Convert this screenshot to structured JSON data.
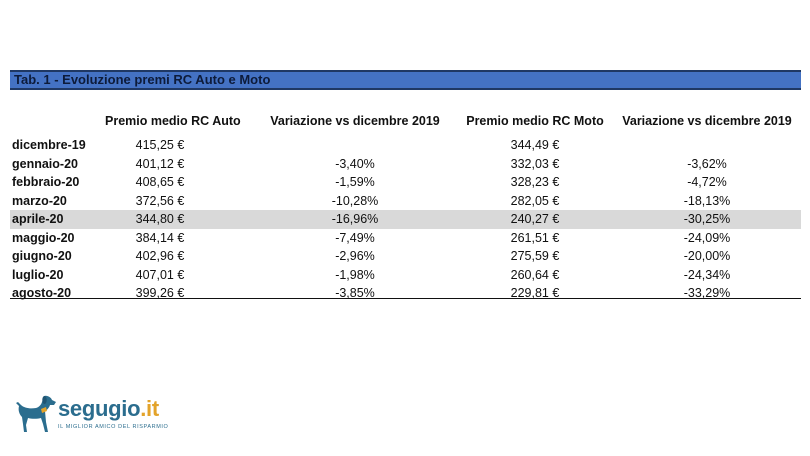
{
  "table": {
    "title": "Tab. 1 - Evoluzione premi RC Auto e Moto",
    "headers": {
      "month": "",
      "auto": "Premio medio RC Auto",
      "var_auto": "Variazione vs dicembre 2019",
      "moto": "Premio medio RC Moto",
      "var_moto": "Variazione vs dicembre 2019"
    },
    "rows": [
      {
        "month": "dicembre-19",
        "auto": "415,25 €",
        "var_auto": "",
        "moto": "344,49 €",
        "var_moto": ""
      },
      {
        "month": "gennaio-20",
        "auto": "401,12 €",
        "var_auto": "-3,40%",
        "moto": "332,03 €",
        "var_moto": "-3,62%"
      },
      {
        "month": "febbraio-20",
        "auto": "408,65 €",
        "var_auto": "-1,59%",
        "moto": "328,23 €",
        "var_moto": "-4,72%"
      },
      {
        "month": "marzo-20",
        "auto": "372,56 €",
        "var_auto": "-10,28%",
        "moto": "282,05 €",
        "var_moto": "-18,13%"
      },
      {
        "month": "aprile-20",
        "auto": "344,80 €",
        "var_auto": "-16,96%",
        "moto": "240,27 €",
        "var_moto": "-30,25%"
      },
      {
        "month": "maggio-20",
        "auto": "384,14 €",
        "var_auto": "-7,49%",
        "moto": "261,51 €",
        "var_moto": "-24,09%"
      },
      {
        "month": "giugno-20",
        "auto": "402,96 €",
        "var_auto": "-2,96%",
        "moto": "275,59 €",
        "var_moto": "-20,00%"
      },
      {
        "month": "luglio-20",
        "auto": "407,01 €",
        "var_auto": "-1,98%",
        "moto": "260,64 €",
        "var_moto": "-24,34%"
      },
      {
        "month": "agosto-20",
        "auto": "399,26 €",
        "var_auto": "-3,85%",
        "moto": "229,81 €",
        "var_moto": "-33,29%"
      }
    ],
    "highlight_row": 4,
    "colors": {
      "title_bar": "#4472c4",
      "title_border": "#1f3864",
      "highlight": "#d9d9d9"
    }
  },
  "logo": {
    "name": "segugio",
    "suffix": ".it",
    "tagline": "IL MIGLIOR AMICO DEL RISPARMIO",
    "icon": "dog-mascot-icon",
    "colors": {
      "primary": "#2b6d8e",
      "accent": "#e3a32a"
    }
  }
}
